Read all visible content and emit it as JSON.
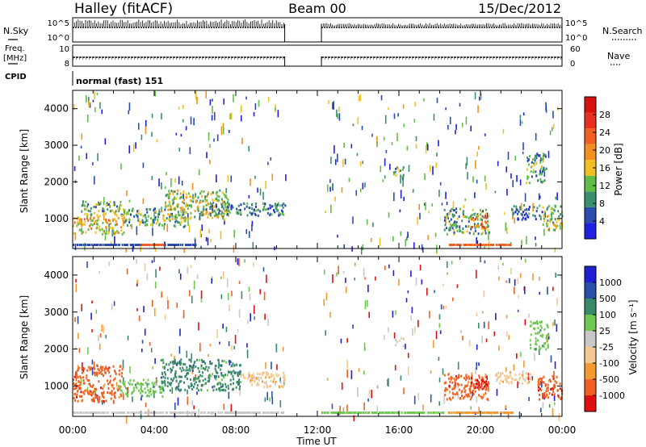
{
  "header": {
    "station": "Halley (fitACF)",
    "beam": "Beam 00",
    "date": "15/Dec/2012"
  },
  "params": {
    "nsky_label": "N.Sky",
    "nsky_ticks": [
      "10^5",
      "10^0"
    ],
    "nsearch_label": "N.Search",
    "freq_label_1": "Freq.",
    "freq_label_2": "[MHz]",
    "freq_ticks": [
      "10",
      "8"
    ],
    "nave_label": "Nave",
    "nave_ticks": [
      "60",
      "0"
    ],
    "cpid_label": "CPID",
    "cpid_value": "normal (fast) 151"
  },
  "colors": {
    "power": [
      "#2020e0",
      "#2a4cb0",
      "#3a8f6f",
      "#62bc48",
      "#f2c020",
      "#f29020",
      "#f06020",
      "#e83020",
      "#d81010"
    ],
    "velocity": [
      "#e01010",
      "#f06020",
      "#f49a30",
      "#f4c890",
      "#c8c8c8",
      "#70c850",
      "#3a8a6a",
      "#2a50a8",
      "#2020d0"
    ]
  },
  "chart_data": [
    {
      "type": "heatmap",
      "name": "power",
      "xlabel": "",
      "ylabel": "Slant Range [km]",
      "x_ticks": [
        "00:00",
        "04:00",
        "08:00",
        "12:00",
        "16:00",
        "20:00",
        "00:00"
      ],
      "y_ticks": [
        "1000",
        "2000",
        "3000",
        "4000"
      ],
      "ylim": [
        180,
        4500
      ],
      "colorbar_label": "Power [dB]",
      "colorbar_ticks": [
        "4",
        "8",
        "12",
        "16",
        "20",
        "24",
        "28"
      ],
      "clim": [
        0,
        32
      ],
      "blobs": [
        {
          "t0": 0.0,
          "t1": 2.5,
          "r0": 600,
          "r1": 1100,
          "v": 17
        },
        {
          "t0": 0.4,
          "t1": 2.4,
          "r0": 1100,
          "r1": 1500,
          "v": 12
        },
        {
          "t0": 2.4,
          "t1": 5.5,
          "r0": 800,
          "r1": 1300,
          "v": 10
        },
        {
          "t0": 4.5,
          "t1": 7.6,
          "r0": 1000,
          "r1": 1800,
          "v": 14
        },
        {
          "t0": 6.5,
          "t1": 10.4,
          "r0": 1100,
          "r1": 1450,
          "v": 8
        },
        {
          "t0": 15.7,
          "t1": 16.2,
          "r0": 2100,
          "r1": 2450,
          "v": 12
        },
        {
          "t0": 18.2,
          "t1": 20.4,
          "r0": 600,
          "r1": 1300,
          "v": 11
        },
        {
          "t0": 19.4,
          "t1": 20.3,
          "r0": 750,
          "r1": 1100,
          "v": 21
        },
        {
          "t0": 21.5,
          "t1": 23.0,
          "r0": 1000,
          "r1": 1400,
          "v": 6
        },
        {
          "t0": 23.0,
          "t1": 24.0,
          "r0": 700,
          "r1": 1400,
          "v": 13
        },
        {
          "t0": 22.2,
          "t1": 23.2,
          "r0": 2000,
          "r1": 2800,
          "v": 10
        }
      ],
      "ground": [
        {
          "t0": 0.0,
          "t1": 6.0,
          "v": 6
        },
        {
          "t0": 3.4,
          "t1": 4.4,
          "v": 24
        },
        {
          "t0": 18.4,
          "t1": 21.5,
          "v": 22
        }
      ]
    },
    {
      "type": "heatmap",
      "name": "velocity",
      "xlabel": "Time UT",
      "ylabel": "Slant Range [km]",
      "x_ticks": [
        "00:00",
        "04:00",
        "08:00",
        "12:00",
        "16:00",
        "20:00",
        "00:00"
      ],
      "y_ticks": [
        "1000",
        "2000",
        "3000",
        "4000"
      ],
      "ylim": [
        180,
        4500
      ],
      "colorbar_label": "Velocity [m s⁻¹]",
      "colorbar_ticks": [
        "-1000",
        "-500",
        "-100",
        "-25",
        "25",
        "100",
        "500",
        "1000"
      ],
      "blobs": [
        {
          "t0": 0.0,
          "t1": 2.4,
          "r0": 600,
          "r1": 1600,
          "v": 1
        },
        {
          "t0": 2.2,
          "t1": 4.4,
          "r0": 750,
          "r1": 1200,
          "v": 5
        },
        {
          "t0": 4.3,
          "t1": 8.2,
          "r0": 900,
          "r1": 1750,
          "v": 6
        },
        {
          "t0": 8.2,
          "t1": 10.4,
          "r0": 1000,
          "r1": 1400,
          "v": 3
        },
        {
          "t0": 15.8,
          "t1": 16.2,
          "r0": 2100,
          "r1": 2350,
          "v": 4
        },
        {
          "t0": 18.2,
          "t1": 20.4,
          "r0": 650,
          "r1": 1350,
          "v": 1
        },
        {
          "t0": 19.3,
          "t1": 20.3,
          "r0": 950,
          "r1": 1250,
          "v": 0
        },
        {
          "t0": 20.5,
          "t1": 22.5,
          "r0": 1100,
          "r1": 1400,
          "v": 3
        },
        {
          "t0": 22.8,
          "t1": 24.0,
          "r0": 650,
          "r1": 1300,
          "v": 1
        },
        {
          "t0": 22.4,
          "t1": 23.3,
          "r0": 2000,
          "r1": 2800,
          "v": 5
        }
      ],
      "ground": [
        {
          "t0": 0.0,
          "t1": 10.4,
          "v": 4
        },
        {
          "t0": 12.2,
          "t1": 18.2,
          "v": 5
        },
        {
          "t0": 18.4,
          "t1": 21.6,
          "v": 2
        }
      ]
    }
  ]
}
